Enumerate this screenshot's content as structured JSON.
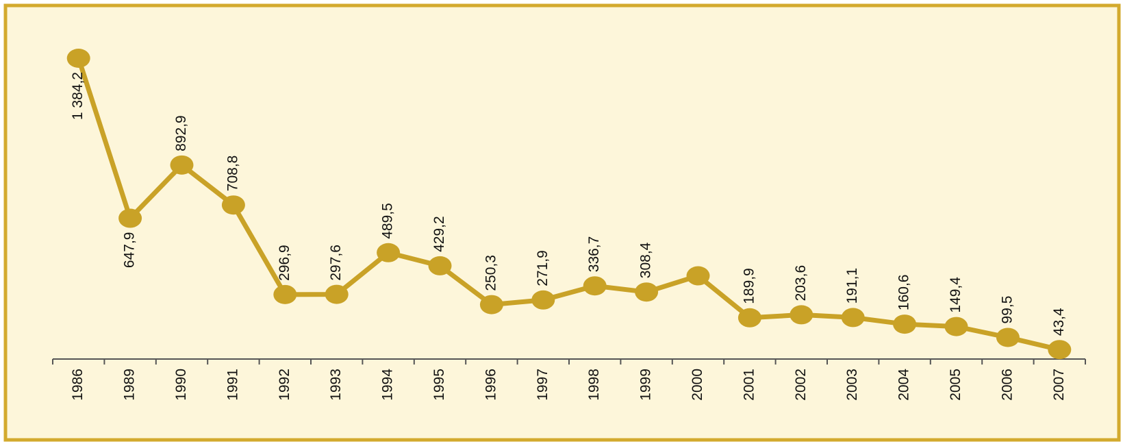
{
  "chart_data": {
    "type": "line",
    "categories": [
      "1986",
      "1989",
      "1990",
      "1991",
      "1992",
      "1993",
      "1994",
      "1995",
      "1996",
      "1997",
      "1998",
      "1999",
      "2000",
      "2001",
      "2002",
      "2003",
      "2004",
      "2005",
      "2006",
      "2007"
    ],
    "series": [
      {
        "color": "#c9a227",
        "values": [
          1384.2,
          647.9,
          892.9,
          708.8,
          296.9,
          297.6,
          489.5,
          429.2,
          250.3,
          271.9,
          336.7,
          308.4,
          383,
          189.9,
          203.6,
          191.1,
          160.6,
          149.4,
          99.5,
          43.4
        ],
        "value_labels": [
          "1 384,2",
          "647,9",
          "892,9",
          "708,8",
          "296,9",
          "297,6",
          "489,5",
          "429,2",
          "250,3",
          "271,9",
          "336,7",
          "308,4",
          null,
          "189,9",
          "203,6",
          "191,1",
          "160,6",
          "149,4",
          "99,5",
          "43,4"
        ]
      }
    ]
  }
}
